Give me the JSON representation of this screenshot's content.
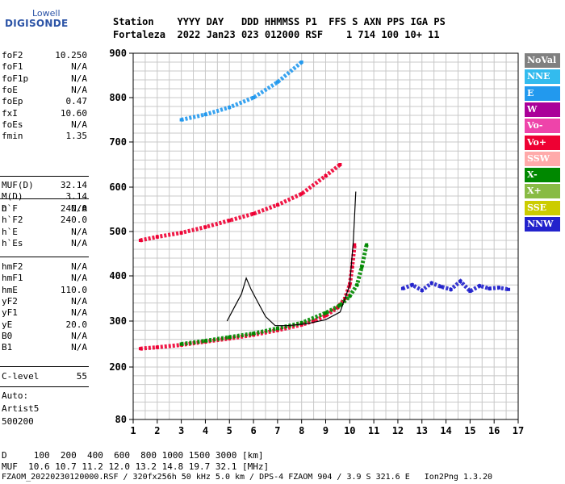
{
  "logo": {
    "top": "Lowell",
    "main": "DIGISONDE"
  },
  "header": {
    "line1": "Station    YYYY DAY   DDD HHMMSS P1  FFS S AXN PPS IGA PS",
    "line2": "Fortaleza  2022 Jan23 023 012000 RSF    1 714 100 10+ 11"
  },
  "params_a": [
    {
      "label": "foF2",
      "value": "10.250"
    },
    {
      "label": "foF1",
      "value": "N/A"
    },
    {
      "label": "foF1p",
      "value": "N/A"
    },
    {
      "label": "foE",
      "value": "N/A"
    },
    {
      "label": "foEp",
      "value": "0.47"
    },
    {
      "label": "fxI",
      "value": "10.60"
    },
    {
      "label": "foEs",
      "value": "N/A"
    },
    {
      "label": "fmin",
      "value": "1.35"
    }
  ],
  "params_b": [
    {
      "label": "MUF(D)",
      "value": "32.14"
    },
    {
      "label": "M(D)",
      "value": "3.14"
    },
    {
      "label": "D",
      "value": "N/A"
    }
  ],
  "params_c": [
    {
      "label": "h`F",
      "value": "240.0"
    },
    {
      "label": "h`F2",
      "value": "240.0"
    },
    {
      "label": "h`E",
      "value": "N/A"
    },
    {
      "label": "h`Es",
      "value": "N/A"
    }
  ],
  "params_d": [
    {
      "label": "hmF2",
      "value": "N/A"
    },
    {
      "label": "hmF1",
      "value": "N/A"
    },
    {
      "label": "hmE",
      "value": "110.0"
    },
    {
      "label": "yF2",
      "value": "N/A"
    },
    {
      "label": "yF1",
      "value": "N/A"
    },
    {
      "label": "yE",
      "value": "20.0"
    },
    {
      "label": "B0",
      "value": "N/A"
    },
    {
      "label": "B1",
      "value": "N/A"
    }
  ],
  "params_e": [
    {
      "label": "C-level",
      "value": "55"
    }
  ],
  "auto": {
    "line1": "Auto:",
    "line2": "Artist5",
    "line3": "500200"
  },
  "legend": [
    {
      "label": "NoVal",
      "color": "#808080"
    },
    {
      "label": "NNE",
      "color": "#33bbee"
    },
    {
      "label": "E",
      "color": "#2299ee"
    },
    {
      "label": "W",
      "color": "#aa0099"
    },
    {
      "label": "Vo-",
      "color": "#ee44aa"
    },
    {
      "label": "Vo+",
      "color": "#ee0033"
    },
    {
      "label": "SSW",
      "color": "#ffaaaa"
    },
    {
      "label": "X-",
      "color": "#008800"
    },
    {
      "label": "X+",
      "color": "#88bb44"
    },
    {
      "label": "SSE",
      "color": "#cccc00"
    },
    {
      "label": "NNW",
      "color": "#2222cc"
    }
  ],
  "chart_data": {
    "type": "scatter",
    "xlim": [
      1,
      17
    ],
    "ylim": [
      80,
      900
    ],
    "xticks": [
      "1",
      "2",
      "3",
      "4",
      "5",
      "6",
      "7",
      "8",
      "9",
      "10",
      "11",
      "12",
      "13",
      "14",
      "15",
      "16",
      "17"
    ],
    "yticks": [
      "80",
      "200",
      "300",
      "400",
      "500",
      "600",
      "700",
      "800",
      "900"
    ],
    "grid": true,
    "traces": [
      {
        "name": "O-trace virtual height",
        "color": "#ee0033",
        "x": [
          1.3,
          2,
          3,
          4,
          5,
          6,
          7,
          8,
          8.5,
          9,
          9.5,
          9.8,
          10,
          10.1,
          10.2
        ],
        "y": [
          240,
          243,
          248,
          255,
          262,
          270,
          280,
          292,
          300,
          312,
          330,
          350,
          380,
          420,
          470
        ]
      },
      {
        "name": "X-trace virtual height",
        "color": "#008800",
        "x": [
          3,
          4,
          5,
          6,
          7,
          8,
          9,
          9.6,
          10,
          10.3,
          10.5,
          10.7
        ],
        "y": [
          250,
          257,
          265,
          273,
          284,
          296,
          318,
          335,
          355,
          380,
          420,
          470
        ]
      },
      {
        "name": "Second hop O",
        "color": "#ee0033",
        "x": [
          1.3,
          2,
          3,
          4,
          5,
          6,
          7,
          8,
          9,
          9.6
        ],
        "y": [
          480,
          488,
          497,
          510,
          525,
          540,
          560,
          585,
          625,
          650
        ]
      },
      {
        "name": "Third hop",
        "color": "#2299ee",
        "x": [
          3,
          4,
          5,
          6,
          7,
          8
        ],
        "y": [
          750,
          762,
          778,
          800,
          835,
          880
        ]
      },
      {
        "name": "Profile",
        "color": "#000000",
        "x": [
          4.9,
          5.2,
          5.5,
          5.7,
          5.9,
          6.2,
          6.5,
          6.9,
          7.4,
          8.2,
          9.0,
          9.6,
          10.0,
          10.15,
          10.25
        ],
        "y": [
          300,
          330,
          360,
          395,
          370,
          340,
          310,
          290,
          290,
          294,
          303,
          320,
          380,
          480,
          590
        ]
      },
      {
        "name": "Spread F",
        "color": "#2222cc",
        "x": [
          12.2,
          12.6,
          13.0,
          13.4,
          13.8,
          14.2,
          14.6,
          15.0,
          15.4,
          15.8,
          16.2,
          16.6
        ],
        "y": [
          372,
          380,
          368,
          384,
          376,
          370,
          388,
          366,
          378,
          372,
          374,
          370
        ]
      }
    ]
  },
  "footer": {
    "line1": "D     100  200  400  600  800 1000 1500 3000 [km]",
    "line2": "MUF  10.6 10.7 11.2 12.0 13.2 14.8 19.7 32.1 [MHz]",
    "line3": "FZAOM_20220230120000.RSF / 320fx256h 50 kHz 5.0 km / DPS-4 FZAOM 904 / 3.9 S 321.6 E   Ion2Png 1.3.20"
  }
}
